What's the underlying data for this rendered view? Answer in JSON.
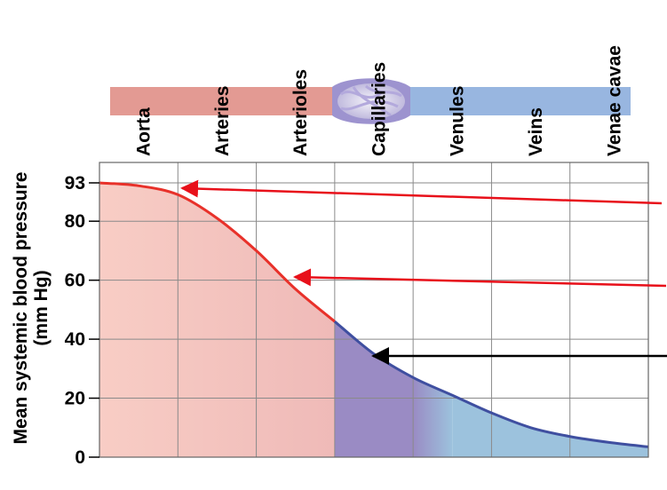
{
  "vessels": [
    "Aorta",
    "Arteries",
    "Arterioles",
    "Capillaries",
    "Venules",
    "Veins",
    "Venae cavae"
  ],
  "chart_data": {
    "type": "area",
    "ylabel": "Mean systemic blood pressure",
    "ylabel_units": "(mm Hg)",
    "yticks": [
      0,
      20,
      40,
      60,
      80,
      93
    ],
    "ylim": [
      0,
      100
    ],
    "categories": [
      "Aorta",
      "Arteries",
      "Arterioles",
      "Capillaries",
      "Venules",
      "Veins",
      "Venae cavae"
    ],
    "x": [
      0,
      0.5,
      1,
      1.5,
      2,
      2.5,
      3,
      3.5,
      4,
      4.5,
      5,
      5.5,
      6,
      6.5,
      7
    ],
    "values": [
      93,
      92,
      89,
      81,
      70,
      57,
      46,
      35,
      27,
      21,
      15,
      10,
      7,
      5,
      3.5
    ],
    "grid": true,
    "colors": {
      "arterial": "#f2b7b3",
      "arterial_line": "#e8312a",
      "capillary": "#9a8bc4",
      "venous": "#9cc2dd",
      "venous_line": "#3f4fa0",
      "arrow_red": "#e8101a",
      "arrow_black": "#000000",
      "artery_tube": "#e39a93",
      "vein_tube": "#98b6e0"
    }
  }
}
